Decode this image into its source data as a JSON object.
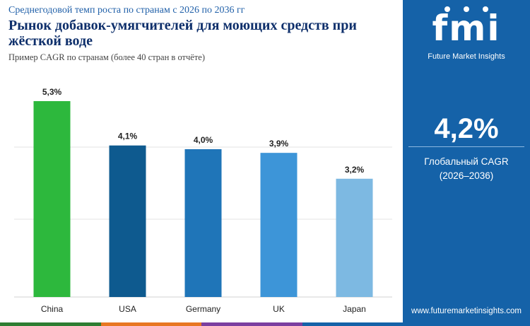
{
  "header": {
    "subtitle": "Среднегодовой темп роста по странам с 2026 по 2036 гг",
    "title": "Рынок добавок-умягчителей для моющих средств при жёсткой воде",
    "note": "Пример CAGR по странам (более 40 стран в отчёте)"
  },
  "sidebar": {
    "logo_text": "fmi",
    "logo_tagline": "Future Market Insights",
    "global_cagr": "4,2%",
    "global_cagr_label": "Глобальный CAGR",
    "global_cagr_period": "(2026–2036)",
    "website": "www.futuremarketinsights.com",
    "bg_color": "#1562a8"
  },
  "bottom_bar_colors": [
    "#2e7d32",
    "#e87722",
    "#7b3fa0",
    "#1562a8"
  ],
  "chart_data": {
    "type": "bar",
    "title": "",
    "xlabel": "",
    "ylabel": "",
    "categories": [
      "China",
      "USA",
      "Germany",
      "UK",
      "Japan"
    ],
    "values": [
      5.3,
      4.1,
      4.0,
      3.9,
      3.2
    ],
    "value_labels": [
      "5,3%",
      "4,1%",
      "4,0%",
      "3,9%",
      "3,2%"
    ],
    "colors": [
      "#2db83d",
      "#0e5a8f",
      "#1f75b8",
      "#3d95d8",
      "#7db9e2"
    ],
    "ylim": [
      0,
      5.3
    ],
    "grid": true
  }
}
